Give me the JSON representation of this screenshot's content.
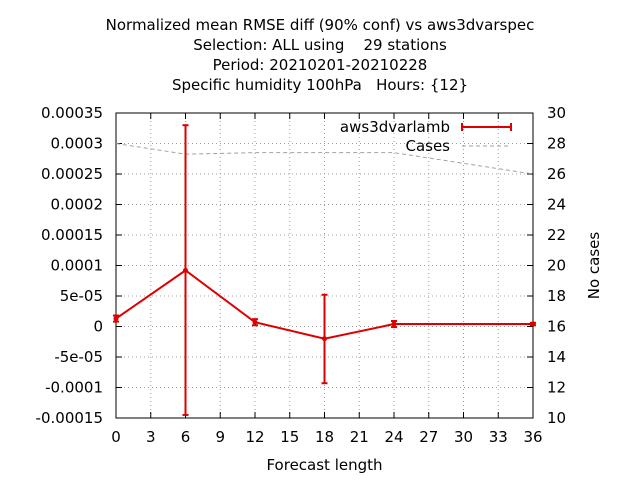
{
  "title_lines": [
    "Normalized mean RMSE diff (90% conf) vs aws3dvarspec",
    "Selection: ALL using    29 stations",
    "Period: 20210201-20210228",
    "Specific humidity 100hPa   Hours: {12}"
  ],
  "chart_data": {
    "type": "line",
    "xlabel": "Forecast length",
    "ylabel": "",
    "y2label": "No cases",
    "xlim": [
      0,
      36
    ],
    "ylim": [
      -0.00015,
      0.00035
    ],
    "y2lim": [
      10,
      30
    ],
    "x_ticks": [
      "0",
      "3",
      "6",
      "9",
      "12",
      "15",
      "18",
      "21",
      "24",
      "27",
      "30",
      "33",
      "36"
    ],
    "y_ticks": [
      "0.00035",
      "0.0003",
      "0.00025",
      "0.0002",
      "0.00015",
      "0.0001",
      "5e-05",
      "0",
      "-5e-05",
      "-0.0001",
      "-0.00015"
    ],
    "y2_ticks": [
      "30",
      "28",
      "26",
      "24",
      "22",
      "20",
      "18",
      "16",
      "14",
      "12",
      "10"
    ],
    "grid": true,
    "legend_position": "top-right",
    "series": [
      {
        "name": "aws3dvarlamb",
        "color": "#dd0000",
        "style": "line with error bars",
        "x": [
          0,
          6,
          12,
          18,
          24,
          36
        ],
        "y": [
          1.3e-05,
          9.2e-05,
          7e-06,
          -2e-05,
          4e-06,
          4e-06
        ],
        "err_low": [
          8e-06,
          -0.000145,
          2e-06,
          -9.3e-05,
          -1e-06,
          2e-06
        ],
        "err_high": [
          1.8e-05,
          0.00033,
          1.2e-05,
          5.2e-05,
          9e-06,
          6e-06
        ]
      },
      {
        "name": "Cases",
        "color": "#a0a0a0",
        "style": "dashed",
        "axis": "y2",
        "x": [
          0,
          6,
          12,
          18,
          24,
          36
        ],
        "y": [
          28,
          27.3,
          27.4,
          27.4,
          27.4,
          26
        ]
      }
    ]
  }
}
